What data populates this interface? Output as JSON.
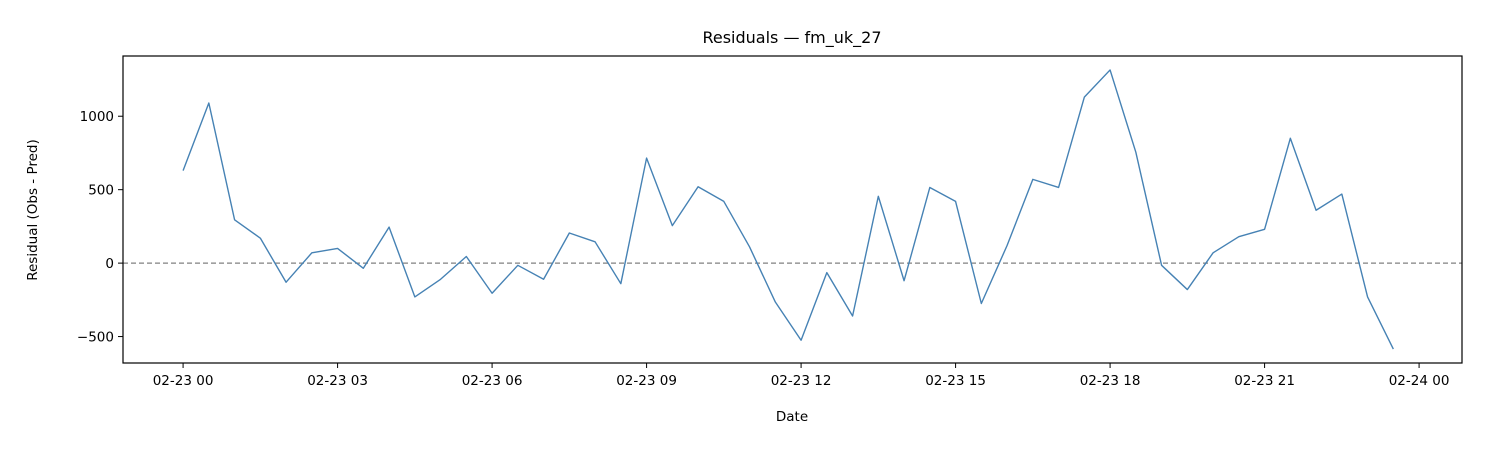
{
  "chart_data": {
    "type": "line",
    "title": "Residuals — fm_uk_27",
    "xlabel": "Date",
    "ylabel": "Residual (Obs - Pred)",
    "grid": false,
    "legend": "none",
    "xlim": [
      "2023-02-22 22:50",
      "2023-02-24 00:50"
    ],
    "ylim": [
      -680,
      1410
    ],
    "x_ticks": [
      {
        "value": "2023-02-23 00:00",
        "label": "02-23 00"
      },
      {
        "value": "2023-02-23 03:00",
        "label": "02-23 03"
      },
      {
        "value": "2023-02-23 06:00",
        "label": "02-23 06"
      },
      {
        "value": "2023-02-23 09:00",
        "label": "02-23 09"
      },
      {
        "value": "2023-02-23 12:00",
        "label": "02-23 12"
      },
      {
        "value": "2023-02-23 15:00",
        "label": "02-23 15"
      },
      {
        "value": "2023-02-23 18:00",
        "label": "02-23 18"
      },
      {
        "value": "2023-02-23 21:00",
        "label": "02-23 21"
      },
      {
        "value": "2023-02-24 00:00",
        "label": "02-24 00"
      }
    ],
    "y_ticks": [
      {
        "value": -500,
        "label": "−500"
      },
      {
        "value": 0,
        "label": "0"
      },
      {
        "value": 500,
        "label": "500"
      },
      {
        "value": 1000,
        "label": "1000"
      }
    ],
    "reference_line": {
      "y": 0,
      "color": "#808080",
      "style": "dashed"
    },
    "series": [
      {
        "color": "#4682b4",
        "x": [
          "2023-02-23 00:00",
          "2023-02-23 00:30",
          "2023-02-23 01:00",
          "2023-02-23 01:30",
          "2023-02-23 02:00",
          "2023-02-23 02:30",
          "2023-02-23 03:00",
          "2023-02-23 03:30",
          "2023-02-23 04:00",
          "2023-02-23 04:30",
          "2023-02-23 05:00",
          "2023-02-23 05:30",
          "2023-02-23 06:00",
          "2023-02-23 06:30",
          "2023-02-23 07:00",
          "2023-02-23 07:30",
          "2023-02-23 08:00",
          "2023-02-23 08:30",
          "2023-02-23 09:00",
          "2023-02-23 09:30",
          "2023-02-23 10:00",
          "2023-02-23 10:30",
          "2023-02-23 11:00",
          "2023-02-23 11:30",
          "2023-02-23 12:00",
          "2023-02-23 12:30",
          "2023-02-23 13:00",
          "2023-02-23 13:30",
          "2023-02-23 14:00",
          "2023-02-23 14:30",
          "2023-02-23 15:00",
          "2023-02-23 15:30",
          "2023-02-23 16:00",
          "2023-02-23 16:30",
          "2023-02-23 17:00",
          "2023-02-23 17:30",
          "2023-02-23 18:00",
          "2023-02-23 18:30",
          "2023-02-23 19:00",
          "2023-02-23 19:30",
          "2023-02-23 20:00",
          "2023-02-23 20:30",
          "2023-02-23 21:00",
          "2023-02-23 21:30",
          "2023-02-23 22:00",
          "2023-02-23 22:30",
          "2023-02-23 23:00",
          "2023-02-23 23:30"
        ],
        "y": [
          630,
          1090,
          295,
          170,
          -130,
          70,
          100,
          -35,
          245,
          -230,
          -110,
          45,
          -205,
          -15,
          -110,
          205,
          145,
          -140,
          715,
          255,
          520,
          420,
          110,
          -265,
          -525,
          -65,
          -360,
          455,
          -120,
          515,
          420,
          -275,
          120,
          570,
          515,
          1130,
          1315,
          755,
          -15,
          -180,
          70,
          180,
          230,
          850,
          360,
          470,
          -230,
          -585
        ]
      }
    ]
  }
}
